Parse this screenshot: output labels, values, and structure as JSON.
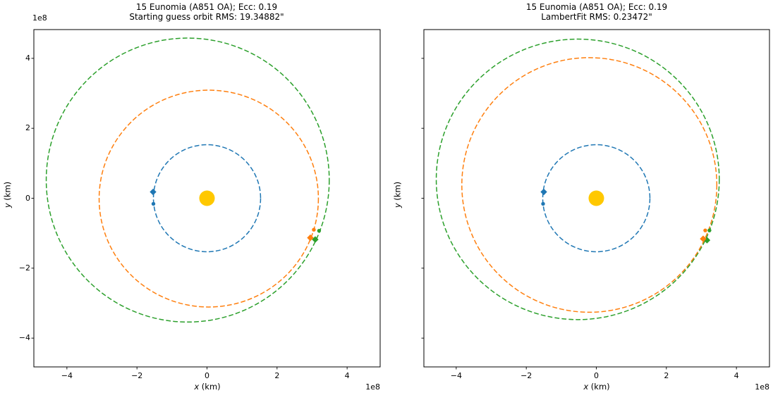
{
  "figure": {
    "background": "#ffffff"
  },
  "colors": {
    "earth_orbit_blue": "#1f77b4",
    "fit_orbit_orange": "#ff7f0e",
    "reference_orbit_green": "#2ca02c",
    "sun_gold": "#ffc800",
    "axis_black": "#000000"
  },
  "chart_data": {
    "type": "line",
    "subtype": "orbit-plot",
    "units_note": "axis values in 1e8 km",
    "grid": false,
    "legend": "none",
    "panels": [
      {
        "title_line1": "15 Eunomia (A851 OA); Ecc: 0.19",
        "title_line2": "Starting guess orbit RMS: 19.34882\"",
        "xlabel_var": "x",
        "xlabel_unit": " (km)",
        "ylabel_var": "y",
        "ylabel_unit": " (km)",
        "x_offset_text": "1e8",
        "y_offset_text": "1e8",
        "x_ticks": [
          -4,
          -2,
          0,
          2,
          4
        ],
        "y_ticks": [
          -4,
          -2,
          0,
          2,
          4
        ],
        "x_tick_labels": [
          "−4",
          "−2",
          "0",
          "2",
          "4"
        ],
        "y_tick_labels": [
          "−4",
          "−2",
          "0",
          "2",
          "4"
        ],
        "y_tick_labels_visible": true,
        "xlim": [
          -4.94,
          4.94
        ],
        "ylim": [
          -4.82,
          4.82
        ],
        "sun": {
          "x": 0,
          "y": 0
        },
        "orbits": [
          {
            "name": "reference-orbit",
            "color": "green",
            "cx": -0.55,
            "cy": 0.52,
            "rx": 4.04,
            "ry": 4.06
          },
          {
            "name": "guess-orbit",
            "color": "orange",
            "cx": 0.05,
            "cy": -0.01,
            "rx": 3.13,
            "ry": 3.1
          },
          {
            "name": "earth-orbit",
            "color": "blue",
            "cx": 0,
            "cy": 0,
            "rx": 1.53,
            "ry": 1.53
          }
        ],
        "markers": [
          {
            "name": "reference-pos-1",
            "shape": "circle",
            "color": "green",
            "x": 3.2,
            "y": -0.93
          },
          {
            "name": "reference-pos-2",
            "shape": "diamond",
            "color": "green",
            "x": 3.09,
            "y": -1.18
          },
          {
            "name": "guess-pos-1",
            "shape": "circle",
            "color": "orange",
            "x": 3.05,
            "y": -0.9
          },
          {
            "name": "guess-pos-2",
            "shape": "diamond",
            "color": "orange",
            "x": 2.95,
            "y": -1.13
          },
          {
            "name": "earth-obs-1",
            "shape": "diamond",
            "color": "blue",
            "x": -1.54,
            "y": 0.18
          },
          {
            "name": "earth-obs-2",
            "shape": "circle",
            "color": "blue",
            "x": -1.53,
            "y": -0.16
          }
        ]
      },
      {
        "title_line1": "15 Eunomia (A851 OA); Ecc: 0.19",
        "title_line2": "LambertFit RMS: 0.23472\"",
        "xlabel_var": "x",
        "xlabel_unit": " (km)",
        "ylabel_var": "y",
        "ylabel_unit": " (km)",
        "x_offset_text": "1e8",
        "y_offset_text": "",
        "x_ticks": [
          -4,
          -2,
          0,
          2,
          4
        ],
        "y_ticks": [
          -4,
          -2,
          0,
          2,
          4
        ],
        "x_tick_labels": [
          "−4",
          "−2",
          "0",
          "2",
          "4"
        ],
        "y_tick_labels": [],
        "y_tick_labels_visible": false,
        "xlim": [
          -4.94,
          4.94
        ],
        "ylim": [
          -4.82,
          4.82
        ],
        "sun": {
          "x": 0,
          "y": 0
        },
        "orbits": [
          {
            "name": "reference-orbit",
            "color": "green",
            "cx": -0.53,
            "cy": 0.54,
            "rx": 4.04,
            "ry": 4.01
          },
          {
            "name": "fit-orbit",
            "color": "orange",
            "cx": -0.2,
            "cy": 0.38,
            "rx": 3.64,
            "ry": 3.64
          },
          {
            "name": "earth-orbit",
            "color": "blue",
            "cx": 0,
            "cy": 0,
            "rx": 1.53,
            "ry": 1.53
          }
        ],
        "markers": [
          {
            "name": "reference-pos-1",
            "shape": "circle",
            "color": "green",
            "x": 3.23,
            "y": -0.92
          },
          {
            "name": "reference-pos-2",
            "shape": "diamond",
            "color": "green",
            "x": 3.16,
            "y": -1.2
          },
          {
            "name": "fit-pos-1",
            "shape": "circle",
            "color": "orange",
            "x": 3.11,
            "y": -0.92
          },
          {
            "name": "fit-pos-2",
            "shape": "diamond",
            "color": "orange",
            "x": 3.05,
            "y": -1.16
          },
          {
            "name": "earth-obs-1",
            "shape": "diamond",
            "color": "blue",
            "x": -1.5,
            "y": 0.18
          },
          {
            "name": "earth-obs-2",
            "shape": "circle",
            "color": "blue",
            "x": -1.52,
            "y": -0.16
          }
        ]
      }
    ]
  }
}
